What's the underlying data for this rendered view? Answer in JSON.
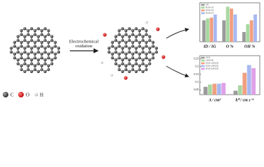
{
  "diagram": {
    "arrow_label": [
      "Electrochemical",
      "oxidation"
    ],
    "atom_legend": [
      "C",
      "O",
      "H"
    ]
  },
  "chart_data": [
    {
      "type": "bar",
      "categories": [
        "ID / IG",
        "O %",
        "OH %"
      ],
      "ylim": [
        0,
        1
      ],
      "series": [
        {
          "name": "GS",
          "color": "#9a9a9a",
          "values": [
            0.55,
            0.55,
            0.25
          ]
        },
        {
          "name": "EGS-1.6",
          "color": "#a8d8a0",
          "values": [
            0.6,
            0.9,
            0.45
          ]
        },
        {
          "name": "EGS-1.8",
          "color": "#f0a080",
          "values": [
            0.62,
            0.85,
            0.55
          ]
        },
        {
          "name": "EGS-2.0",
          "color": "#a8b8f0",
          "values": [
            0.7,
            0.7,
            0.7
          ]
        }
      ]
    },
    {
      "type": "bar",
      "categories": [
        "A / cm²",
        "k⁰ / cm s⁻¹"
      ],
      "ylim": [
        0.02,
        0.27
      ],
      "yticks": [
        0.05,
        0.1,
        0.15,
        0.2,
        0.25
      ],
      "series": [
        {
          "name": "GCE",
          "color": "#9a9a9a",
          "values": [
            0.07,
            0.045
          ]
        },
        {
          "name": "GS/GCE",
          "color": "#a8d8a0",
          "values": [
            0.085,
            0.08
          ]
        },
        {
          "name": "EGS-1.6/GCE",
          "color": "#f0a080",
          "values": [
            0.09,
            0.16
          ]
        },
        {
          "name": "EGS-1.8/GCE",
          "color": "#a8b8f0",
          "values": [
            0.09,
            0.21
          ]
        },
        {
          "name": "EGS-2.0/GCE",
          "color": "#e0a0e8",
          "values": [
            0.095,
            0.19
          ]
        }
      ]
    }
  ]
}
